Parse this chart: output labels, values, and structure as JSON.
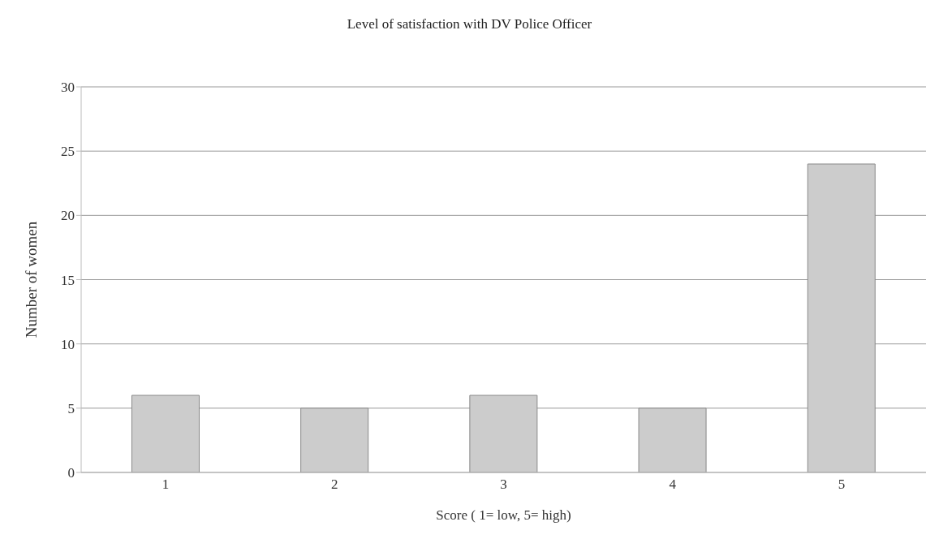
{
  "chart_data": {
    "type": "bar",
    "title": "Level of satisfaction with DV Police Officer",
    "xlabel": "Score ( 1= low, 5= high)",
    "ylabel": "Number of women",
    "categories": [
      "1",
      "2",
      "3",
      "4",
      "5"
    ],
    "values": [
      6,
      5,
      6,
      5,
      24
    ],
    "color": "#cccccc",
    "ylim": [
      0,
      30
    ],
    "yticks": [
      0,
      5,
      10,
      15,
      20,
      25,
      30
    ],
    "grid": "y"
  }
}
